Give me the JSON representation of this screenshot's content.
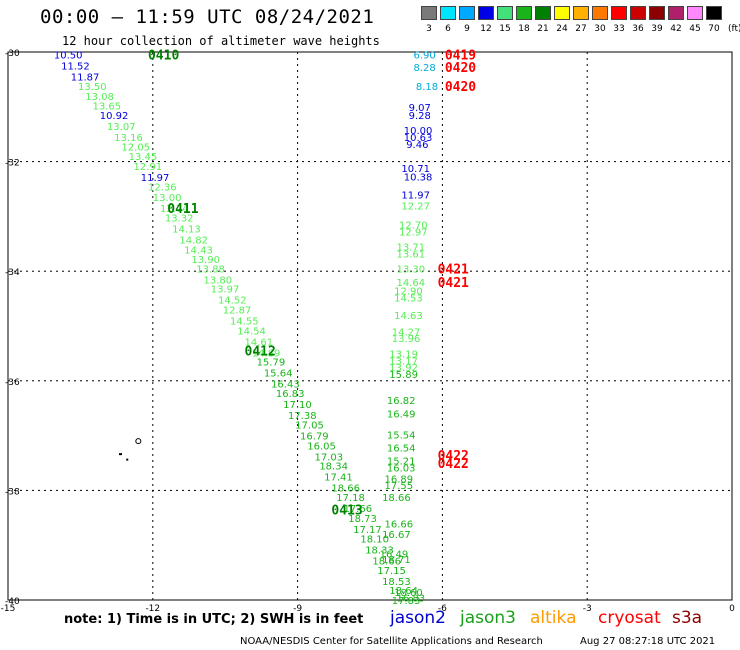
{
  "header": {
    "title": "00:00 – 11:59 UTC 08/24/2021",
    "subtitle": "12 hour collection of altimeter wave heights"
  },
  "legend": {
    "unit": "(ft)",
    "items": [
      {
        "label": "3",
        "color": "#7a7a7a"
      },
      {
        "label": "6",
        "color": "#00e5ff"
      },
      {
        "label": "9",
        "color": "#00a8ff"
      },
      {
        "label": "12",
        "color": "#0000e6"
      },
      {
        "label": "15",
        "color": "#44e07a"
      },
      {
        "label": "18",
        "color": "#19b419"
      },
      {
        "label": "21",
        "color": "#008000"
      },
      {
        "label": "24",
        "color": "#ffff00"
      },
      {
        "label": "27",
        "color": "#ffb000"
      },
      {
        "label": "30",
        "color": "#ff7800"
      },
      {
        "label": "33",
        "color": "#ff0000"
      },
      {
        "label": "36",
        "color": "#cc0000"
      },
      {
        "label": "39",
        "color": "#8b0000"
      },
      {
        "label": "42",
        "color": "#b0206a"
      },
      {
        "label": "45",
        "color": "#ff88ff"
      },
      {
        "label": "70",
        "color": "#000000"
      }
    ]
  },
  "axes": {
    "lat_ticks": [
      "-30",
      "-32",
      "-34",
      "-36",
      "-38",
      "-40"
    ],
    "lon_ticks": [
      "-15",
      "-12",
      "-9",
      "-6",
      "-3",
      "0"
    ]
  },
  "colors": {
    "blue": "#0000dd",
    "light_green": "#55ee55",
    "green": "#19b419",
    "dark_green": "#008000",
    "cyan": "#00aadd",
    "red": "#ff0000"
  },
  "tracks": [
    {
      "times": [
        {
          "label": "0410",
          "lat": -30.05,
          "lon": -12.1,
          "color": "dark_green"
        },
        {
          "label": "0411",
          "lat": -32.85,
          "lon": -11.7,
          "color": "dark_green"
        },
        {
          "label": "0412",
          "lat": -35.45,
          "lon": -10.1,
          "color": "dark_green"
        },
        {
          "label": "0413",
          "lat": -38.35,
          "lon": -8.3,
          "color": "dark_green"
        }
      ],
      "values": [
        {
          "v": "10.50",
          "lat": -30.05,
          "lon": -14.05,
          "color": "blue"
        },
        {
          "v": "11.52",
          "lat": -30.25,
          "lon": -13.9,
          "color": "blue"
        },
        {
          "v": "11.87",
          "lat": -30.45,
          "lon": -13.7,
          "color": "blue"
        },
        {
          "v": "13.50",
          "lat": -30.62,
          "lon": -13.55,
          "color": "light_green"
        },
        {
          "v": "13.08",
          "lat": -30.8,
          "lon": -13.4,
          "color": "light_green"
        },
        {
          "v": "13.65",
          "lat": -30.98,
          "lon": -13.25,
          "color": "light_green"
        },
        {
          "v": "10.92",
          "lat": -31.15,
          "lon": -13.1,
          "color": "blue"
        },
        {
          "v": "13.07",
          "lat": -31.35,
          "lon": -12.95,
          "color": "light_green"
        },
        {
          "v": "13.16",
          "lat": -31.55,
          "lon": -12.8,
          "color": "light_green"
        },
        {
          "v": "12.05",
          "lat": -31.72,
          "lon": -12.65,
          "color": "light_green"
        },
        {
          "v": "13.45",
          "lat": -31.9,
          "lon": -12.5,
          "color": "light_green"
        },
        {
          "v": "12.91",
          "lat": -32.08,
          "lon": -12.4,
          "color": "light_green"
        },
        {
          "v": "11.97",
          "lat": -32.28,
          "lon": -12.25,
          "color": "blue"
        },
        {
          "v": "12.36",
          "lat": -32.45,
          "lon": -12.1,
          "color": "light_green"
        },
        {
          "v": "13.00",
          "lat": -32.65,
          "lon": -12.0,
          "color": "light_green"
        },
        {
          "v": "12.74",
          "lat": -32.85,
          "lon": -11.85,
          "color": "light_green"
        },
        {
          "v": "13.32",
          "lat": -33.02,
          "lon": -11.75,
          "color": "light_green"
        },
        {
          "v": "14.13",
          "lat": -33.22,
          "lon": -11.6,
          "color": "light_green"
        },
        {
          "v": "14.82",
          "lat": -33.42,
          "lon": -11.45,
          "color": "light_green"
        },
        {
          "v": "14.43",
          "lat": -33.6,
          "lon": -11.35,
          "color": "light_green"
        },
        {
          "v": "13.90",
          "lat": -33.78,
          "lon": -11.2,
          "color": "light_green"
        },
        {
          "v": "13.88",
          "lat": -33.95,
          "lon": -11.1,
          "color": "light_green"
        },
        {
          "v": "13.80",
          "lat": -34.15,
          "lon": -10.95,
          "color": "light_green"
        },
        {
          "v": "13.97",
          "lat": -34.32,
          "lon": -10.8,
          "color": "light_green"
        },
        {
          "v": "14.52",
          "lat": -34.52,
          "lon": -10.65,
          "color": "light_green"
        },
        {
          "v": "12.87",
          "lat": -34.7,
          "lon": -10.55,
          "color": "light_green"
        },
        {
          "v": "14.55",
          "lat": -34.9,
          "lon": -10.4,
          "color": "light_green"
        },
        {
          "v": "14.54",
          "lat": -35.08,
          "lon": -10.25,
          "color": "light_green"
        },
        {
          "v": "14.61",
          "lat": -35.28,
          "lon": -10.1,
          "color": "light_green"
        },
        {
          "v": "14.89",
          "lat": -35.48,
          "lon": -9.95,
          "color": "light_green"
        },
        {
          "v": "15.79",
          "lat": -35.65,
          "lon": -9.85,
          "color": "green"
        },
        {
          "v": "15.64",
          "lat": -35.85,
          "lon": -9.7,
          "color": "green"
        },
        {
          "v": "16.43",
          "lat": -36.05,
          "lon": -9.55,
          "color": "green"
        },
        {
          "v": "16.83",
          "lat": -36.22,
          "lon": -9.45,
          "color": "green"
        },
        {
          "v": "17.10",
          "lat": -36.42,
          "lon": -9.3,
          "color": "green"
        },
        {
          "v": "17.38",
          "lat": -36.62,
          "lon": -9.2,
          "color": "green"
        },
        {
          "v": "17.05",
          "lat": -36.8,
          "lon": -9.05,
          "color": "green"
        },
        {
          "v": "16.79",
          "lat": -37.0,
          "lon": -8.95,
          "color": "green"
        },
        {
          "v": "16.05",
          "lat": -37.18,
          "lon": -8.8,
          "color": "green"
        },
        {
          "v": "17.03",
          "lat": -37.38,
          "lon": -8.65,
          "color": "green"
        },
        {
          "v": "18.34",
          "lat": -37.55,
          "lon": -8.55,
          "color": "green"
        },
        {
          "v": "17.41",
          "lat": -37.75,
          "lon": -8.45,
          "color": "green"
        },
        {
          "v": "18.66",
          "lat": -37.95,
          "lon": -8.3,
          "color": "green"
        },
        {
          "v": "17.18",
          "lat": -38.12,
          "lon": -8.2,
          "color": "green"
        },
        {
          "v": "17.66",
          "lat": -38.32,
          "lon": -8.05,
          "color": "green"
        },
        {
          "v": "18.73",
          "lat": -38.5,
          "lon": -7.95,
          "color": "green"
        },
        {
          "v": "17.17",
          "lat": -38.7,
          "lon": -7.85,
          "color": "green"
        },
        {
          "v": "18.10",
          "lat": -38.88,
          "lon": -7.7,
          "color": "green"
        },
        {
          "v": "18.33",
          "lat": -39.08,
          "lon": -7.6,
          "color": "green"
        },
        {
          "v": "18.66",
          "lat": -39.28,
          "lon": -7.45,
          "color": "green"
        },
        {
          "v": "17.15",
          "lat": -39.45,
          "lon": -7.35,
          "color": "green"
        },
        {
          "v": "18.53",
          "lat": -39.65,
          "lon": -7.25,
          "color": "green"
        },
        {
          "v": "18.64",
          "lat": -39.82,
          "lon": -7.1,
          "color": "green"
        },
        {
          "v": "17.83",
          "lat": -40.0,
          "lon": -7.05,
          "color": "green"
        }
      ]
    },
    {
      "times": [
        {
          "label": "0419",
          "lat": -30.05,
          "lon": -5.95,
          "color": "red"
        },
        {
          "label": "0420",
          "lat": -30.27,
          "lon": -5.95,
          "color": "red"
        },
        {
          "label": "0420",
          "lat": -30.62,
          "lon": -5.95,
          "color": "red"
        },
        {
          "label": "0421",
          "lat": -33.95,
          "lon": -6.1,
          "color": "red"
        },
        {
          "label": "0421",
          "lat": -34.2,
          "lon": -6.1,
          "color": "red"
        },
        {
          "label": "0422",
          "lat": -37.35,
          "lon": -6.1,
          "color": "red"
        },
        {
          "label": "0422",
          "lat": -37.5,
          "lon": -6.1,
          "color": "red"
        }
      ],
      "values": [
        {
          "v": "6.90",
          "lat": -30.05,
          "lon": -6.6,
          "color": "cyan"
        },
        {
          "v": "8.28",
          "lat": -30.27,
          "lon": -6.6,
          "color": "cyan"
        },
        {
          "v": "8.18",
          "lat": -30.62,
          "lon": -6.55,
          "color": "cyan"
        },
        {
          "v": "9.07",
          "lat": -31.0,
          "lon": -6.7,
          "color": "blue"
        },
        {
          "v": "9.28",
          "lat": -31.15,
          "lon": -6.7,
          "color": "blue"
        },
        {
          "v": "10.00",
          "lat": -31.42,
          "lon": -6.8,
          "color": "blue"
        },
        {
          "v": "10.63",
          "lat": -31.55,
          "lon": -6.8,
          "color": "blue"
        },
        {
          "v": "9.46",
          "lat": -31.68,
          "lon": -6.75,
          "color": "blue"
        },
        {
          "v": "10.71",
          "lat": -32.12,
          "lon": -6.85,
          "color": "blue"
        },
        {
          "v": "10.38",
          "lat": -32.27,
          "lon": -6.8,
          "color": "blue"
        },
        {
          "v": "11.97",
          "lat": -32.6,
          "lon": -6.85,
          "color": "blue"
        },
        {
          "v": "12.27",
          "lat": -32.8,
          "lon": -6.85,
          "color": "light_green"
        },
        {
          "v": "12.70",
          "lat": -33.15,
          "lon": -6.9,
          "color": "light_green"
        },
        {
          "v": "12.97",
          "lat": -33.28,
          "lon": -6.9,
          "color": "light_green"
        },
        {
          "v": "13.71",
          "lat": -33.55,
          "lon": -6.95,
          "color": "light_green"
        },
        {
          "v": "13.61",
          "lat": -33.68,
          "lon": -6.95,
          "color": "light_green"
        },
        {
          "v": "13.30",
          "lat": -33.95,
          "lon": -6.95,
          "color": "light_green"
        },
        {
          "v": "14.64",
          "lat": -34.2,
          "lon": -6.95,
          "color": "light_green"
        },
        {
          "v": "12.90",
          "lat": -34.35,
          "lon": -7.0,
          "color": "light_green"
        },
        {
          "v": "14.53",
          "lat": -34.48,
          "lon": -7.0,
          "color": "light_green"
        },
        {
          "v": "14.63",
          "lat": -34.8,
          "lon": -7.0,
          "color": "light_green"
        },
        {
          "v": "14.27",
          "lat": -35.1,
          "lon": -7.05,
          "color": "light_green"
        },
        {
          "v": "13.96",
          "lat": -35.22,
          "lon": -7.05,
          "color": "light_green"
        },
        {
          "v": "13.19",
          "lat": -35.5,
          "lon": -7.1,
          "color": "light_green"
        },
        {
          "v": "13.17",
          "lat": -35.63,
          "lon": -7.1,
          "color": "light_green"
        },
        {
          "v": "13.92",
          "lat": -35.75,
          "lon": -7.1,
          "color": "light_green"
        },
        {
          "v": "15.89",
          "lat": -35.88,
          "lon": -7.1,
          "color": "green"
        },
        {
          "v": "16.82",
          "lat": -36.35,
          "lon": -7.15,
          "color": "green"
        },
        {
          "v": "16.49",
          "lat": -36.6,
          "lon": -7.15,
          "color": "green"
        },
        {
          "v": "15.54",
          "lat": -36.98,
          "lon": -7.15,
          "color": "green"
        },
        {
          "v": "16.54",
          "lat": -37.22,
          "lon": -7.15,
          "color": "green"
        },
        {
          "v": "15.21",
          "lat": -37.45,
          "lon": -7.15,
          "color": "green"
        },
        {
          "v": "16.03",
          "lat": -37.58,
          "lon": -7.15,
          "color": "green"
        },
        {
          "v": "16.89",
          "lat": -37.78,
          "lon": -7.2,
          "color": "green"
        },
        {
          "v": "17.55",
          "lat": -37.9,
          "lon": -7.2,
          "color": "green"
        },
        {
          "v": "18.66",
          "lat": -38.12,
          "lon": -7.25,
          "color": "green"
        },
        {
          "v": "16.66",
          "lat": -38.6,
          "lon": -7.2,
          "color": "green"
        },
        {
          "v": "16.67",
          "lat": -38.8,
          "lon": -7.25,
          "color": "green"
        },
        {
          "v": "16.49",
          "lat": -39.15,
          "lon": -7.3,
          "color": "green"
        },
        {
          "v": "18.71",
          "lat": -39.25,
          "lon": -7.25,
          "color": "green"
        },
        {
          "v": "18.60",
          "lat": -39.85,
          "lon": -7.0,
          "color": "green"
        },
        {
          "v": "16.83",
          "lat": -39.95,
          "lon": -6.95,
          "color": "green"
        }
      ]
    }
  ],
  "note": "note: 1) Time is in UTC; 2) SWH is in feet",
  "satellites": [
    {
      "name": "jason2",
      "color": "#0000cc"
    },
    {
      "name": "jason3",
      "color": "#19a019"
    },
    {
      "name": "altika",
      "color": "#ff9900"
    },
    {
      "name": "cryosat",
      "color": "#ff0000"
    },
    {
      "name": "s3a",
      "color": "#8b0000"
    }
  ],
  "footer": {
    "credit": "NOAA/NESDIS Center for Satellite Applications and Research",
    "timestamp": "Aug 27 08:27:18 UTC 2021"
  }
}
